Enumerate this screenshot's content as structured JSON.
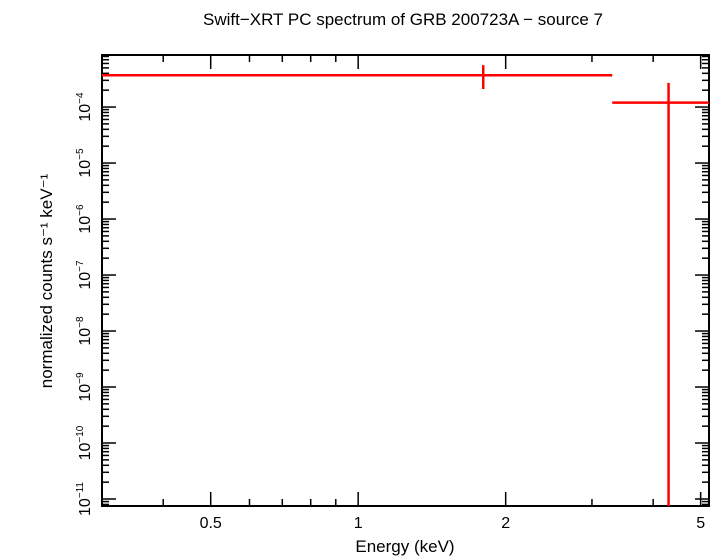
{
  "chart_data": {
    "type": "scatter",
    "title": "Swift−XRT PC spectrum of GRB 200723A − source 7",
    "xlabel": "Energy (keV)",
    "ylabel": "normalized counts s⁻¹ keV⁻¹",
    "x_scale": "log",
    "y_scale": "log",
    "xlim": [
      0.3,
      5.2
    ],
    "ylim": [
      7.5e-12,
      0.00085
    ],
    "x_ticks": [
      {
        "value": 0.5,
        "label": "0.5"
      },
      {
        "value": 1,
        "label": "1"
      },
      {
        "value": 2,
        "label": "2"
      },
      {
        "value": 5,
        "label": "5"
      }
    ],
    "y_ticks": [
      {
        "value": 1e-11,
        "base": "10",
        "exp": "−11"
      },
      {
        "value": 1e-10,
        "base": "10",
        "exp": "−10"
      },
      {
        "value": 1e-09,
        "base": "10",
        "exp": "−9"
      },
      {
        "value": 1e-08,
        "base": "10",
        "exp": "−8"
      },
      {
        "value": 1e-07,
        "base": "10",
        "exp": "−7"
      },
      {
        "value": 1e-06,
        "base": "10",
        "exp": "−6"
      },
      {
        "value": 1e-05,
        "base": "10",
        "exp": "−5"
      },
      {
        "value": 0.0001,
        "base": "10",
        "exp": "−4"
      }
    ],
    "series": [
      {
        "color": "#ff0000",
        "points": [
          {
            "x": 1.8,
            "x_low": 0.3,
            "x_high": 3.3,
            "y": 0.00037,
            "y_low": 0.00021,
            "y_high": 0.00056
          },
          {
            "x": 4.3,
            "x_low": 3.3,
            "x_high": 5.2,
            "y": 0.00012,
            "y_low": 7.5e-12,
            "y_high": 0.00027
          }
        ]
      }
    ]
  }
}
